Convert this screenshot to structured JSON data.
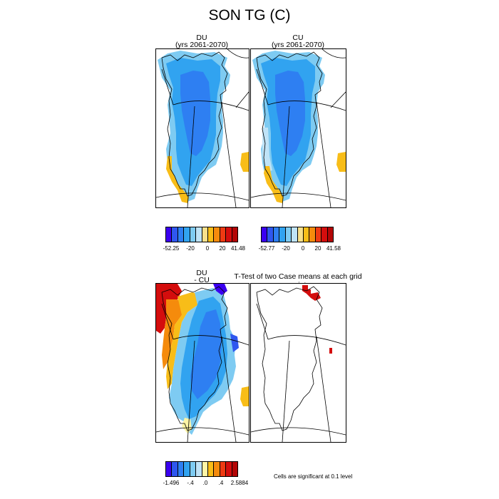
{
  "title": "SON TG (C)",
  "panels": [
    {
      "name": "DU",
      "sub": "(yrs 2061-2070)"
    },
    {
      "name": "CU",
      "sub": "(yrs 2061-2070)"
    },
    {
      "name": "DU",
      "sub": "- CU"
    },
    {
      "name": "T-Test of two Case means at each grid point",
      "sub": ""
    }
  ],
  "colorbars": [
    {
      "labels": [
        "-52.25",
        "-20",
        "0",
        "20",
        "41.48"
      ]
    },
    {
      "labels": [
        "-52.77",
        "-20",
        "0",
        "20",
        "41.58"
      ]
    },
    {
      "labels": [
        "-1.496",
        "-.4",
        ".0",
        ".4",
        "2.5884"
      ]
    }
  ],
  "palettes": {
    "levels": [
      "#3b00f0",
      "#2f57ef",
      "#2e7ff2",
      "#31a3f0",
      "#7ecbf2",
      "#bfe3f7",
      "#f9e08c",
      "#f8bd18",
      "#f58b0c",
      "#ee3a12",
      "#d40d0d",
      "#b30606"
    ],
    "diff": [
      "#3b00f0",
      "#2f57ef",
      "#2e7ff2",
      "#31a3f0",
      "#7ecbf2",
      "#bfe3f7",
      "#fef5a6",
      "#f8bd18",
      "#f58b0c",
      "#ee3a12",
      "#d40d0d",
      "#b30606"
    ]
  },
  "significance_note": "Cells are significant at 0.1 level"
}
